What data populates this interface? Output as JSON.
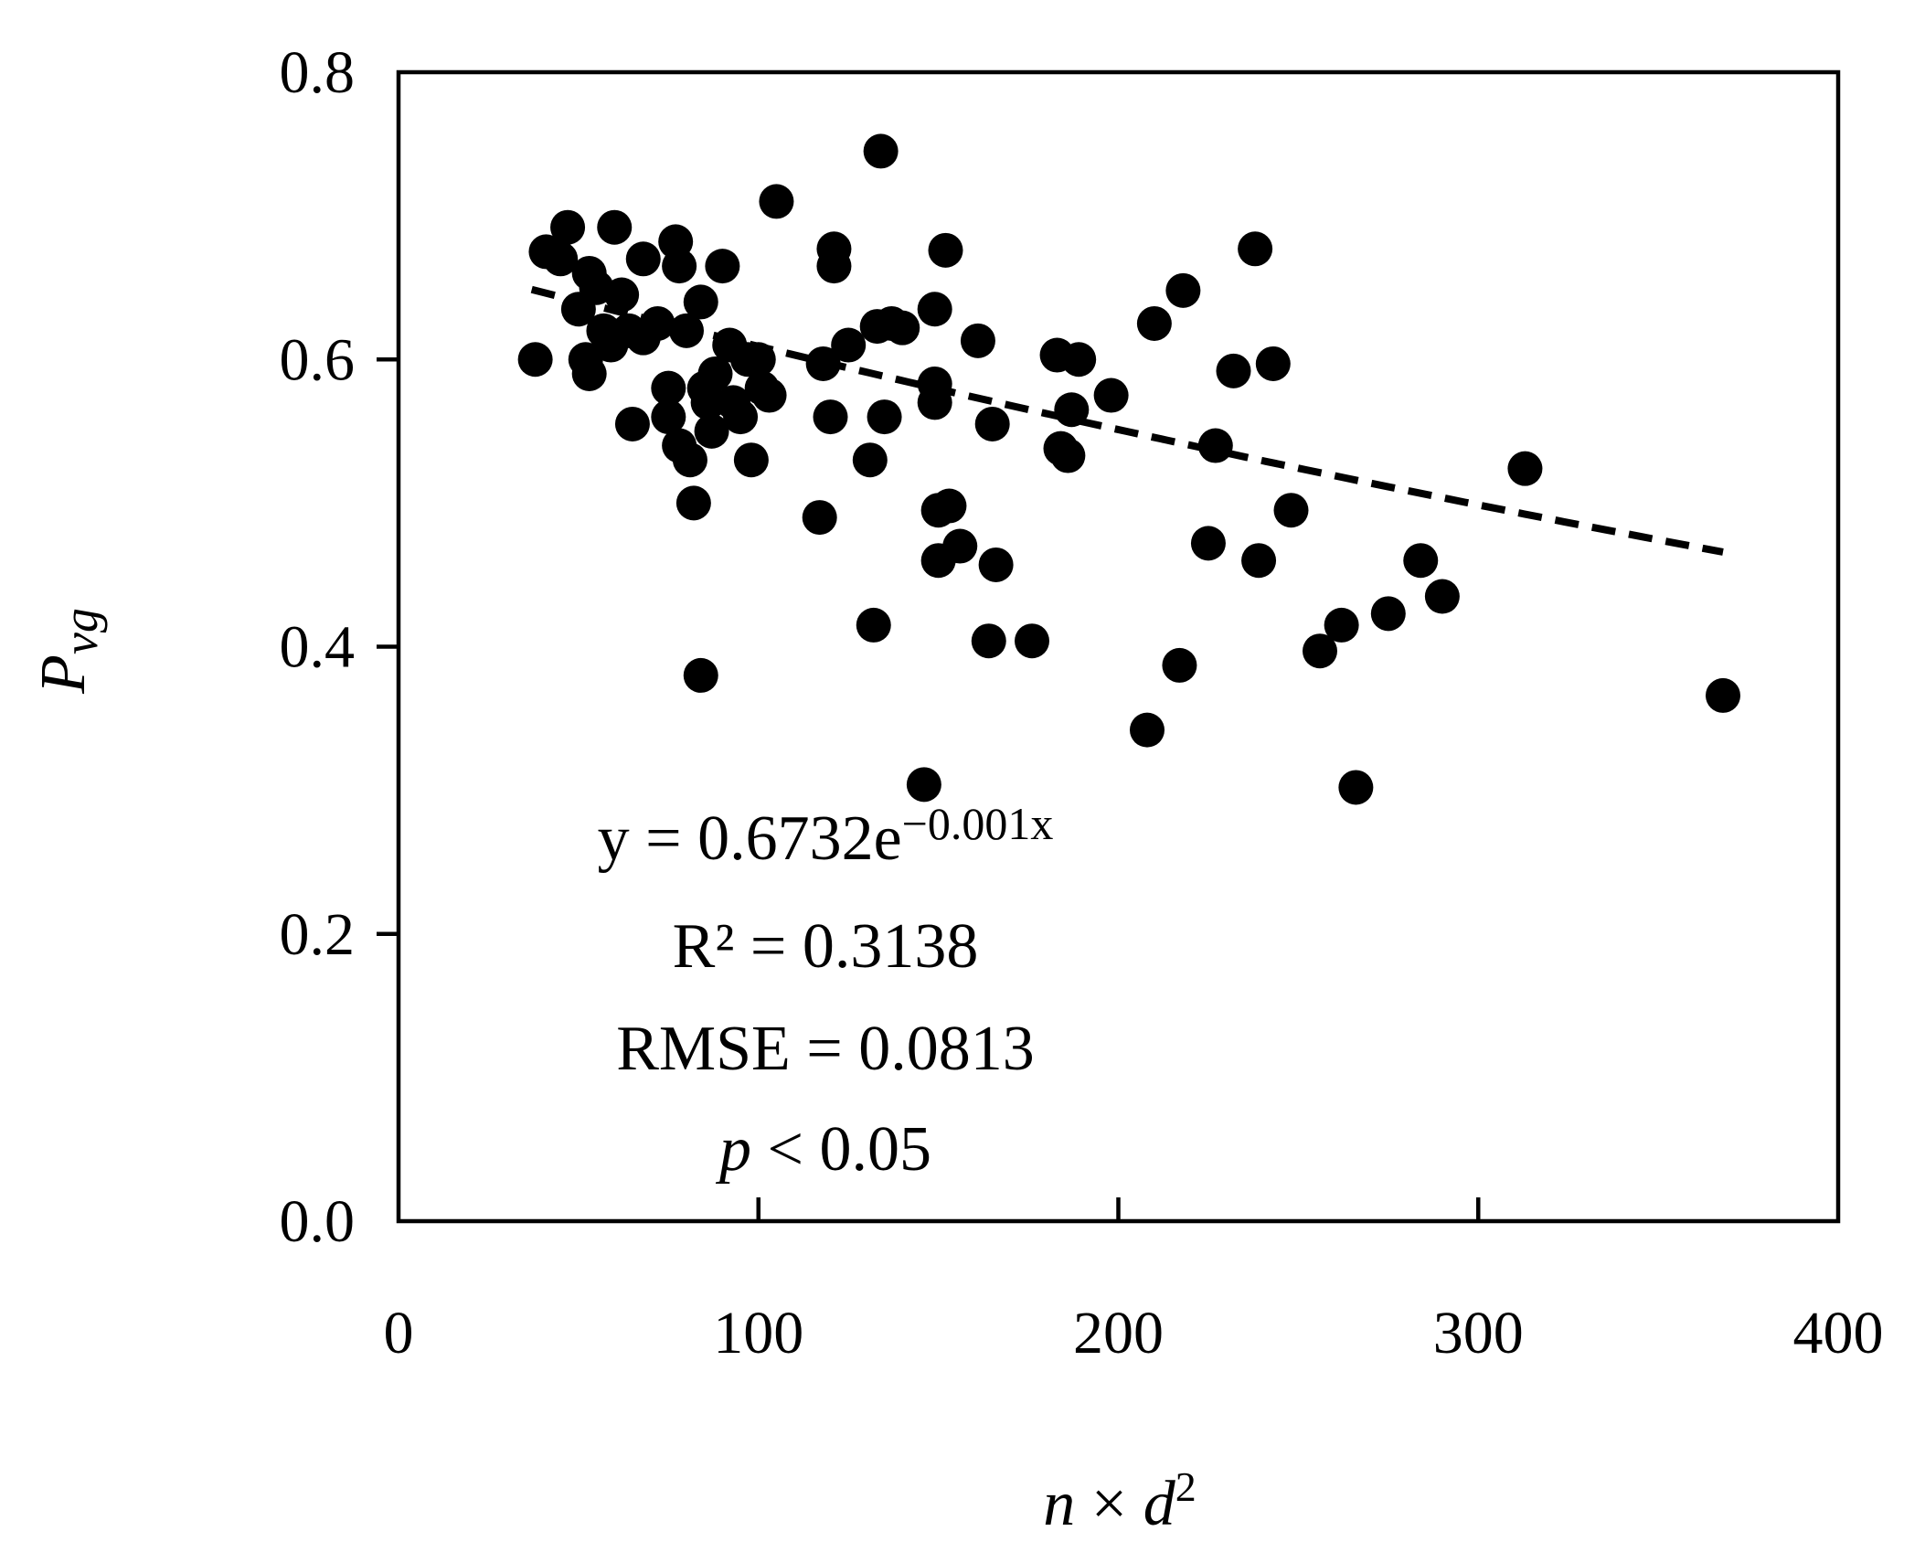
{
  "chart_data": {
    "type": "scatter",
    "title": "",
    "xlabel": {
      "base": "n",
      "sep": " × ",
      "var": "d",
      "exp": "2"
    },
    "ylabel": {
      "base": "P",
      "sub": "vg"
    },
    "xlim": [
      0,
      400
    ],
    "ylim": [
      0,
      0.8
    ],
    "xticks": [
      "0",
      "100",
      "200",
      "300",
      "400"
    ],
    "yticks": [
      "0.0",
      "0.2",
      "0.4",
      "0.6",
      "0.8"
    ],
    "grid": false,
    "legend": "none",
    "marker_color": "#000000",
    "trend_line": {
      "style": "dashed",
      "model": "exponential",
      "a": 0.6732,
      "b": -0.001,
      "x_range": [
        37,
        368
      ]
    },
    "annotations": {
      "equation_main": "y = 0.6732e",
      "equation_exp": "−0.001x",
      "r2": "R² = 0.3138",
      "rmse": "RMSE = 0.0813",
      "p_var": "p",
      "p_rest": " < 0.05"
    },
    "points": [
      [
        38,
        0.6
      ],
      [
        41,
        0.675
      ],
      [
        47,
        0.692
      ],
      [
        45,
        0.67
      ],
      [
        50,
        0.635
      ],
      [
        53,
        0.66
      ],
      [
        52,
        0.6
      ],
      [
        53,
        0.59
      ],
      [
        55,
        0.65
      ],
      [
        57,
        0.62
      ],
      [
        60,
        0.692
      ],
      [
        62,
        0.645
      ],
      [
        59,
        0.61
      ],
      [
        64,
        0.62
      ],
      [
        65,
        0.555
      ],
      [
        68,
        0.67
      ],
      [
        68,
        0.615
      ],
      [
        72,
        0.625
      ],
      [
        75,
        0.58
      ],
      [
        75,
        0.56
      ],
      [
        77,
        0.682
      ],
      [
        78,
        0.665
      ],
      [
        78,
        0.54
      ],
      [
        80,
        0.62
      ],
      [
        81,
        0.53
      ],
      [
        82,
        0.5
      ],
      [
        84,
        0.64
      ],
      [
        84,
        0.38
      ],
      [
        85,
        0.58
      ],
      [
        86,
        0.57
      ],
      [
        87,
        0.55
      ],
      [
        88,
        0.59
      ],
      [
        90,
        0.665
      ],
      [
        92,
        0.61
      ],
      [
        93,
        0.57
      ],
      [
        95,
        0.56
      ],
      [
        97,
        0.6
      ],
      [
        98,
        0.53
      ],
      [
        100,
        0.6
      ],
      [
        101,
        0.58
      ],
      [
        103,
        0.575
      ],
      [
        105,
        0.71
      ],
      [
        117,
        0.49
      ],
      [
        118,
        0.597
      ],
      [
        120,
        0.56
      ],
      [
        121,
        0.677
      ],
      [
        121,
        0.665
      ],
      [
        125,
        0.61
      ],
      [
        131,
        0.53
      ],
      [
        132,
        0.415
      ],
      [
        133,
        0.623
      ],
      [
        134,
        0.745
      ],
      [
        135,
        0.56
      ],
      [
        137,
        0.625
      ],
      [
        140,
        0.622
      ],
      [
        146,
        0.304
      ],
      [
        149,
        0.635
      ],
      [
        149,
        0.583
      ],
      [
        149,
        0.57
      ],
      [
        150,
        0.495
      ],
      [
        150,
        0.46
      ],
      [
        152,
        0.676
      ],
      [
        153,
        0.498
      ],
      [
        156,
        0.47
      ],
      [
        161,
        0.613
      ],
      [
        164,
        0.404
      ],
      [
        165,
        0.555
      ],
      [
        166,
        0.457
      ],
      [
        176,
        0.404
      ],
      [
        183,
        0.603
      ],
      [
        184,
        0.538
      ],
      [
        186,
        0.533
      ],
      [
        187,
        0.565
      ],
      [
        189,
        0.6
      ],
      [
        198,
        0.575
      ],
      [
        208,
        0.342
      ],
      [
        210,
        0.625
      ],
      [
        217,
        0.387
      ],
      [
        218,
        0.648
      ],
      [
        225,
        0.472
      ],
      [
        227,
        0.54
      ],
      [
        232,
        0.592
      ],
      [
        238,
        0.677
      ],
      [
        239,
        0.46
      ],
      [
        243,
        0.597
      ],
      [
        248,
        0.495
      ],
      [
        256,
        0.397
      ],
      [
        262,
        0.415
      ],
      [
        266,
        0.302
      ],
      [
        275,
        0.423
      ],
      [
        284,
        0.46
      ],
      [
        290,
        0.435
      ],
      [
        313,
        0.524
      ],
      [
        368,
        0.366
      ]
    ]
  }
}
